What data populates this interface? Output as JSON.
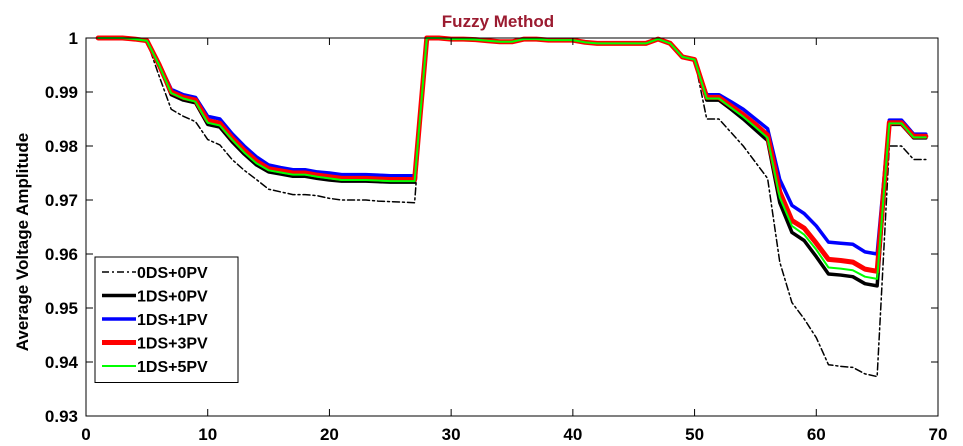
{
  "chart_data": {
    "type": "line",
    "title": "Fuzzy Method",
    "xlabel": "",
    "ylabel": "Average Voltage Amplitude",
    "xlim": [
      0,
      70
    ],
    "ylim": [
      0.93,
      1.0
    ],
    "xticks": [
      0,
      10,
      20,
      30,
      40,
      50,
      60,
      70
    ],
    "yticks": [
      0.93,
      0.94,
      0.95,
      0.96,
      0.97,
      0.98,
      0.99,
      1
    ],
    "ytick_labels": [
      "0.93",
      "0.94",
      "0.95",
      "0.96",
      "0.97",
      "0.98",
      "0.99",
      "1"
    ],
    "grid": false,
    "legend_position": "bottom-left",
    "colors": {
      "title": "#9b1b30",
      "axis": "#000000"
    },
    "x": [
      1,
      2,
      3,
      4,
      5,
      6,
      7,
      8,
      9,
      10,
      11,
      12,
      13,
      14,
      15,
      16,
      17,
      18,
      19,
      20,
      21,
      22,
      23,
      24,
      25,
      26,
      27,
      28,
      29,
      30,
      31,
      32,
      33,
      34,
      35,
      36,
      37,
      38,
      39,
      40,
      41,
      42,
      43,
      44,
      45,
      46,
      47,
      48,
      49,
      50,
      51,
      52,
      53,
      54,
      55,
      56,
      57,
      58,
      59,
      60,
      61,
      62,
      63,
      64,
      65,
      66,
      67,
      68,
      69
    ],
    "series": [
      {
        "name": "0DS+0PV",
        "color": "#000000",
        "style": "dashdot",
        "width": 1.5,
        "values": [
          1.0,
          1.0,
          1.0,
          0.9998,
          0.9995,
          0.993,
          0.9868,
          0.9855,
          0.9845,
          0.9812,
          0.9802,
          0.9775,
          0.9755,
          0.9738,
          0.972,
          0.9715,
          0.971,
          0.971,
          0.9708,
          0.9703,
          0.97,
          0.97,
          0.97,
          0.9698,
          0.9697,
          0.9696,
          0.9695,
          1.0,
          1.0,
          0.9998,
          0.9998,
          0.9997,
          0.9995,
          0.9993,
          0.9993,
          0.9998,
          0.9998,
          0.9996,
          0.9996,
          0.9996,
          0.9992,
          0.999,
          0.999,
          0.999,
          0.999,
          0.999,
          0.9998,
          0.999,
          0.9965,
          0.996,
          0.985,
          0.985,
          0.9825,
          0.98,
          0.977,
          0.974,
          0.9585,
          0.951,
          0.948,
          0.9445,
          0.9395,
          0.9392,
          0.939,
          0.9378,
          0.9373,
          0.98,
          0.98,
          0.9775,
          0.9775
        ]
      },
      {
        "name": "1DS+0PV",
        "color": "#000000",
        "style": "solid",
        "width": 3.5,
        "values": [
          1.0,
          1.0,
          1.0,
          0.9998,
          0.9995,
          0.995,
          0.9895,
          0.9885,
          0.988,
          0.984,
          0.9835,
          0.9808,
          0.9785,
          0.9765,
          0.9752,
          0.9748,
          0.9744,
          0.9744,
          0.974,
          0.9737,
          0.9735,
          0.9735,
          0.9735,
          0.9734,
          0.9733,
          0.9733,
          0.9733,
          1.0,
          1.0,
          0.9998,
          0.9998,
          0.9997,
          0.9995,
          0.9993,
          0.9993,
          0.9998,
          0.9998,
          0.9996,
          0.9996,
          0.9996,
          0.9992,
          0.999,
          0.999,
          0.999,
          0.999,
          0.999,
          0.9998,
          0.999,
          0.9965,
          0.996,
          0.9885,
          0.9885,
          0.9868,
          0.985,
          0.983,
          0.981,
          0.9695,
          0.964,
          0.9625,
          0.9595,
          0.9563,
          0.9561,
          0.9558,
          0.9545,
          0.9541,
          0.984,
          0.984,
          0.9815,
          0.9815
        ]
      },
      {
        "name": "1DS+1PV",
        "color": "#0000ff",
        "style": "solid",
        "width": 3.5,
        "values": [
          1.0,
          1.0,
          1.0,
          0.9998,
          0.9995,
          0.9953,
          0.9905,
          0.9895,
          0.989,
          0.9855,
          0.985,
          0.9823,
          0.98,
          0.978,
          0.9765,
          0.976,
          0.9756,
          0.9756,
          0.9752,
          0.975,
          0.9747,
          0.9747,
          0.9747,
          0.9746,
          0.9745,
          0.9745,
          0.9745,
          1.0,
          1.0,
          0.9998,
          0.9998,
          0.9997,
          0.9995,
          0.9993,
          0.9993,
          0.9998,
          0.9998,
          0.9996,
          0.9996,
          0.9996,
          0.9992,
          0.999,
          0.999,
          0.999,
          0.999,
          0.999,
          0.9998,
          0.999,
          0.9965,
          0.996,
          0.9895,
          0.9895,
          0.9882,
          0.9868,
          0.985,
          0.9832,
          0.9738,
          0.969,
          0.9675,
          0.9652,
          0.9622,
          0.962,
          0.9618,
          0.9604,
          0.96,
          0.9848,
          0.9848,
          0.9822,
          0.9822
        ]
      },
      {
        "name": "1DS+3PV",
        "color": "#ff0000",
        "style": "solid",
        "width": 5,
        "values": [
          1.0,
          1.0,
          1.0,
          0.9998,
          0.9995,
          0.9951,
          0.99,
          0.989,
          0.9885,
          0.9847,
          0.9842,
          0.9815,
          0.9792,
          0.9772,
          0.9758,
          0.9754,
          0.975,
          0.975,
          0.9746,
          0.9743,
          0.974,
          0.974,
          0.974,
          0.9739,
          0.9738,
          0.9738,
          0.9738,
          1.0,
          1.0,
          0.9998,
          0.9998,
          0.9997,
          0.9995,
          0.9993,
          0.9993,
          0.9998,
          0.9998,
          0.9996,
          0.9996,
          0.9996,
          0.9992,
          0.999,
          0.999,
          0.999,
          0.999,
          0.999,
          0.9998,
          0.999,
          0.9965,
          0.996,
          0.989,
          0.989,
          0.9874,
          0.9858,
          0.984,
          0.982,
          0.9715,
          0.9662,
          0.9648,
          0.962,
          0.959,
          0.9588,
          0.9585,
          0.9572,
          0.9568,
          0.9843,
          0.9843,
          0.9818,
          0.9818
        ]
      },
      {
        "name": "1DS+5PV",
        "color": "#00ff00",
        "style": "solid",
        "width": 2,
        "values": [
          1.0,
          1.0,
          1.0,
          0.9998,
          0.9995,
          0.995,
          0.9898,
          0.9888,
          0.9882,
          0.9843,
          0.9838,
          0.9812,
          0.9788,
          0.9768,
          0.9755,
          0.9751,
          0.9747,
          0.9747,
          0.9743,
          0.974,
          0.9737,
          0.9737,
          0.9737,
          0.9736,
          0.9735,
          0.9735,
          0.9735,
          1.0,
          1.0,
          0.9998,
          0.9998,
          0.9997,
          0.9995,
          0.9993,
          0.9993,
          0.9998,
          0.9998,
          0.9996,
          0.9996,
          0.9996,
          0.9992,
          0.999,
          0.999,
          0.999,
          0.999,
          0.999,
          0.9998,
          0.999,
          0.9965,
          0.996,
          0.9888,
          0.9888,
          0.9871,
          0.9854,
          0.9835,
          0.9815,
          0.9705,
          0.9652,
          0.9636,
          0.9608,
          0.9575,
          0.9573,
          0.957,
          0.9558,
          0.9554,
          0.9842,
          0.9842,
          0.9816,
          0.9816
        ]
      }
    ]
  }
}
